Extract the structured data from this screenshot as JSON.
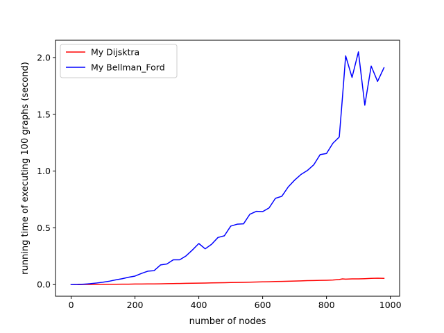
{
  "chart_data": {
    "type": "line",
    "title": "",
    "xlabel": "number of nodes",
    "ylabel": "running time of executing 100 graphs (second)",
    "xlim": [
      -49,
      1029
    ],
    "ylim": [
      -0.1025,
      2.1525
    ],
    "xticks": [
      0,
      200,
      400,
      600,
      800,
      1000
    ],
    "xtick_labels": [
      "0",
      "200",
      "400",
      "600",
      "800",
      "1000"
    ],
    "yticks": [
      0.0,
      0.5,
      1.0,
      1.5,
      2.0
    ],
    "ytick_labels": [
      "0.0",
      "0.5",
      "1.0",
      "1.5",
      "2.0"
    ],
    "grid": false,
    "legend_position": "top-left",
    "x": [
      0,
      20,
      40,
      60,
      80,
      100,
      120,
      140,
      160,
      180,
      200,
      220,
      240,
      260,
      280,
      300,
      320,
      340,
      360,
      380,
      400,
      420,
      440,
      460,
      480,
      500,
      520,
      540,
      560,
      580,
      600,
      620,
      640,
      660,
      680,
      700,
      720,
      740,
      760,
      780,
      800,
      820,
      840,
      850,
      860,
      880,
      900,
      920,
      940,
      960,
      980
    ],
    "series": [
      {
        "name": "My Dijsktra",
        "color": "#ff0000",
        "values": [
          0.0,
          0.0,
          0.001,
          0.001,
          0.002,
          0.002,
          0.003,
          0.003,
          0.004,
          0.004,
          0.005,
          0.005,
          0.006,
          0.006,
          0.007,
          0.008,
          0.009,
          0.01,
          0.011,
          0.012,
          0.013,
          0.014,
          0.015,
          0.016,
          0.017,
          0.018,
          0.019,
          0.02,
          0.021,
          0.023,
          0.024,
          0.025,
          0.027,
          0.028,
          0.03,
          0.031,
          0.033,
          0.035,
          0.036,
          0.037,
          0.038,
          0.04,
          0.045,
          0.05,
          0.048,
          0.05,
          0.05,
          0.052,
          0.055,
          0.056,
          0.055
        ]
      },
      {
        "name": "My Bellman_Ford",
        "color": "#0000ff",
        "values": [
          0.0,
          0.001,
          0.004,
          0.008,
          0.014,
          0.021,
          0.03,
          0.042,
          0.052,
          0.065,
          0.075,
          0.098,
          0.118,
          0.123,
          0.173,
          0.182,
          0.218,
          0.218,
          0.253,
          0.305,
          0.362,
          0.315,
          0.355,
          0.415,
          0.43,
          0.515,
          0.532,
          0.535,
          0.62,
          0.645,
          0.643,
          0.675,
          0.76,
          0.778,
          0.86,
          0.92,
          0.97,
          1.005,
          1.055,
          1.145,
          1.155,
          1.245,
          1.3,
          1.65,
          2.015,
          1.825,
          2.05,
          1.58,
          1.925,
          1.79,
          1.91
        ]
      }
    ]
  }
}
